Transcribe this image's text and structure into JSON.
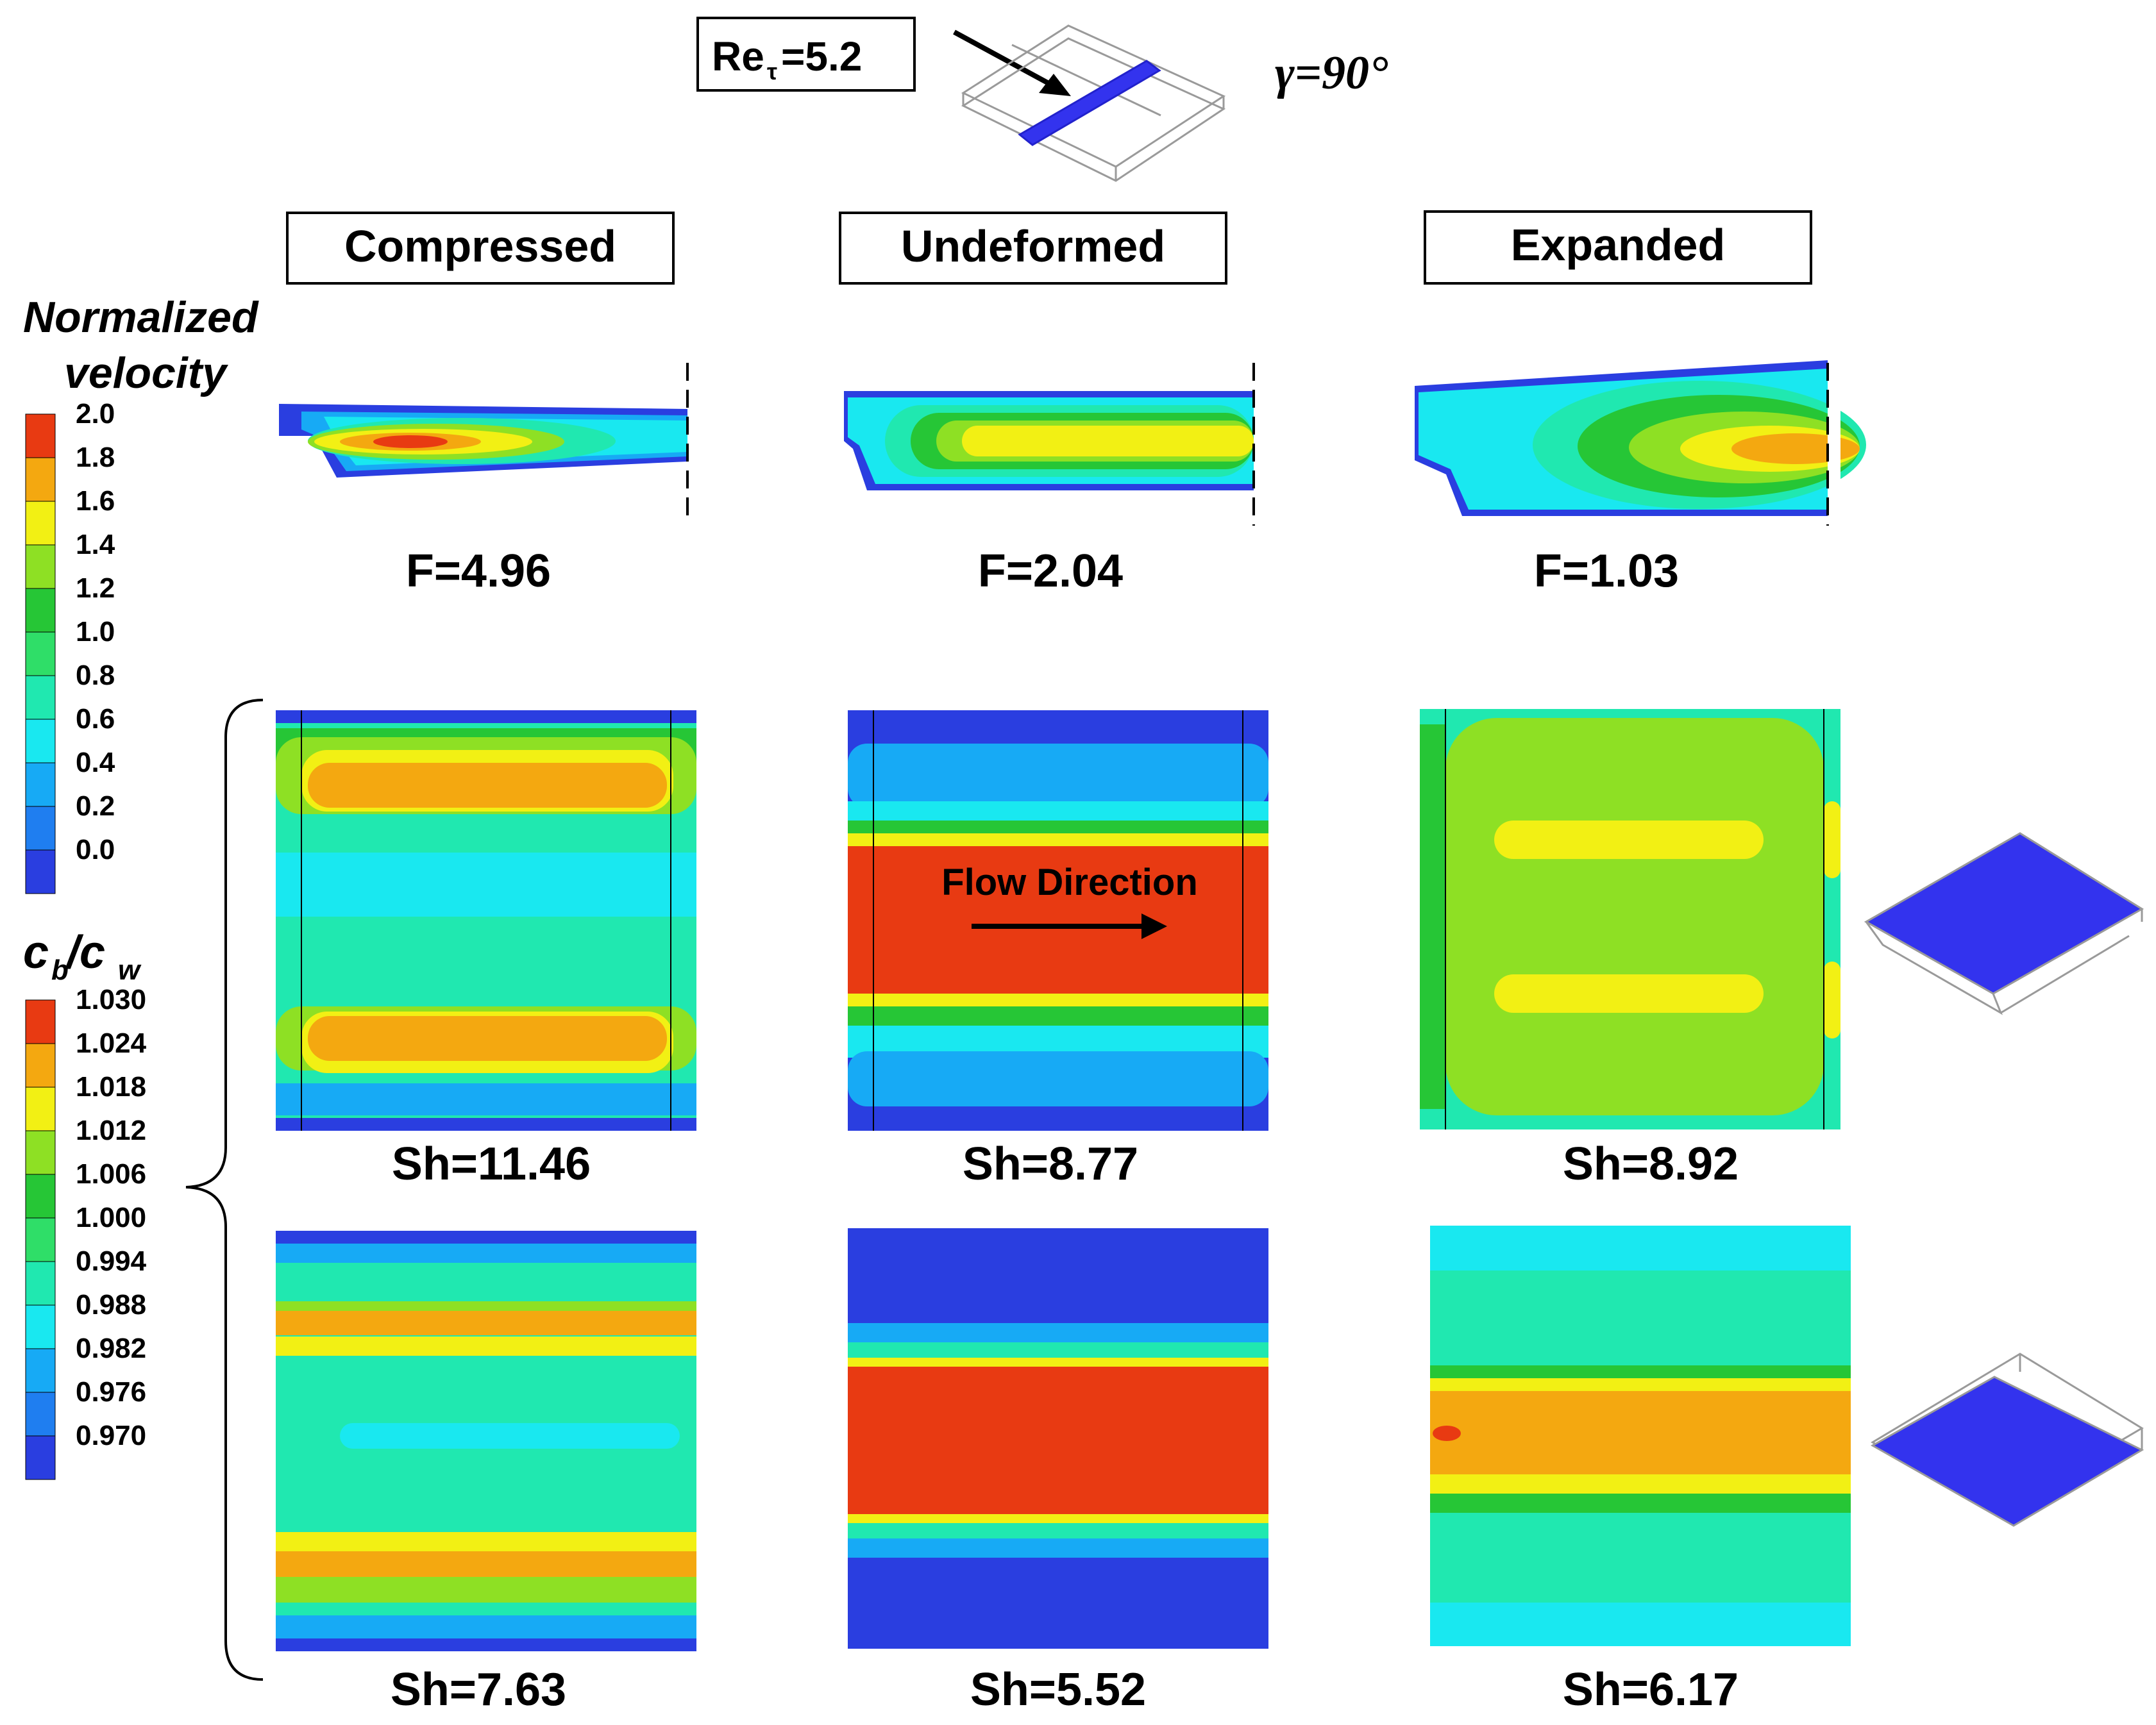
{
  "header": {
    "reynolds_label": "Re",
    "reynolds_sub": "τ",
    "reynolds_value": "=5.2",
    "gamma_label": "γ=90°"
  },
  "columns": [
    {
      "label": "Compressed"
    },
    {
      "label": "Undeformed"
    },
    {
      "label": "Expanded"
    }
  ],
  "legend_velocity": {
    "title_line1": "Normalized",
    "title_line2": "velocity",
    "ticks": [
      "2.0",
      "1.8",
      "1.6",
      "1.4",
      "1.2",
      "1.0",
      "0.8",
      "0.6",
      "0.4",
      "0.2",
      "0.0"
    ]
  },
  "legend_concentration": {
    "title_c": "c",
    "title_b": "b",
    "title_slash": "/c",
    "title_w": "w",
    "ticks": [
      "1.030",
      "1.024",
      "1.018",
      "1.012",
      "1.006",
      "1.000",
      "0.994",
      "0.988",
      "0.982",
      "0.976",
      "0.970"
    ]
  },
  "colormap": [
    "#2a3ee0",
    "#1f7ef0",
    "#17aaf5",
    "#19e8f0",
    "#20e8b0",
    "#2fde68",
    "#26c636",
    "#8ee024",
    "#f2f014",
    "#f4a810",
    "#e83a12"
  ],
  "panels": {
    "f_values": [
      "F=4.96",
      "F=2.04",
      "F=1.03"
    ],
    "sh_top": [
      "Sh=11.46",
      "Sh=8.77",
      "Sh=8.92"
    ],
    "sh_bottom": [
      "Sh=7.63",
      "Sh=5.52",
      "Sh=6.17"
    ],
    "flow_direction_label": "Flow Direction"
  },
  "colors": {
    "membrane_blue": "#3333ee",
    "outline_gray": "#9a9a9a"
  }
}
